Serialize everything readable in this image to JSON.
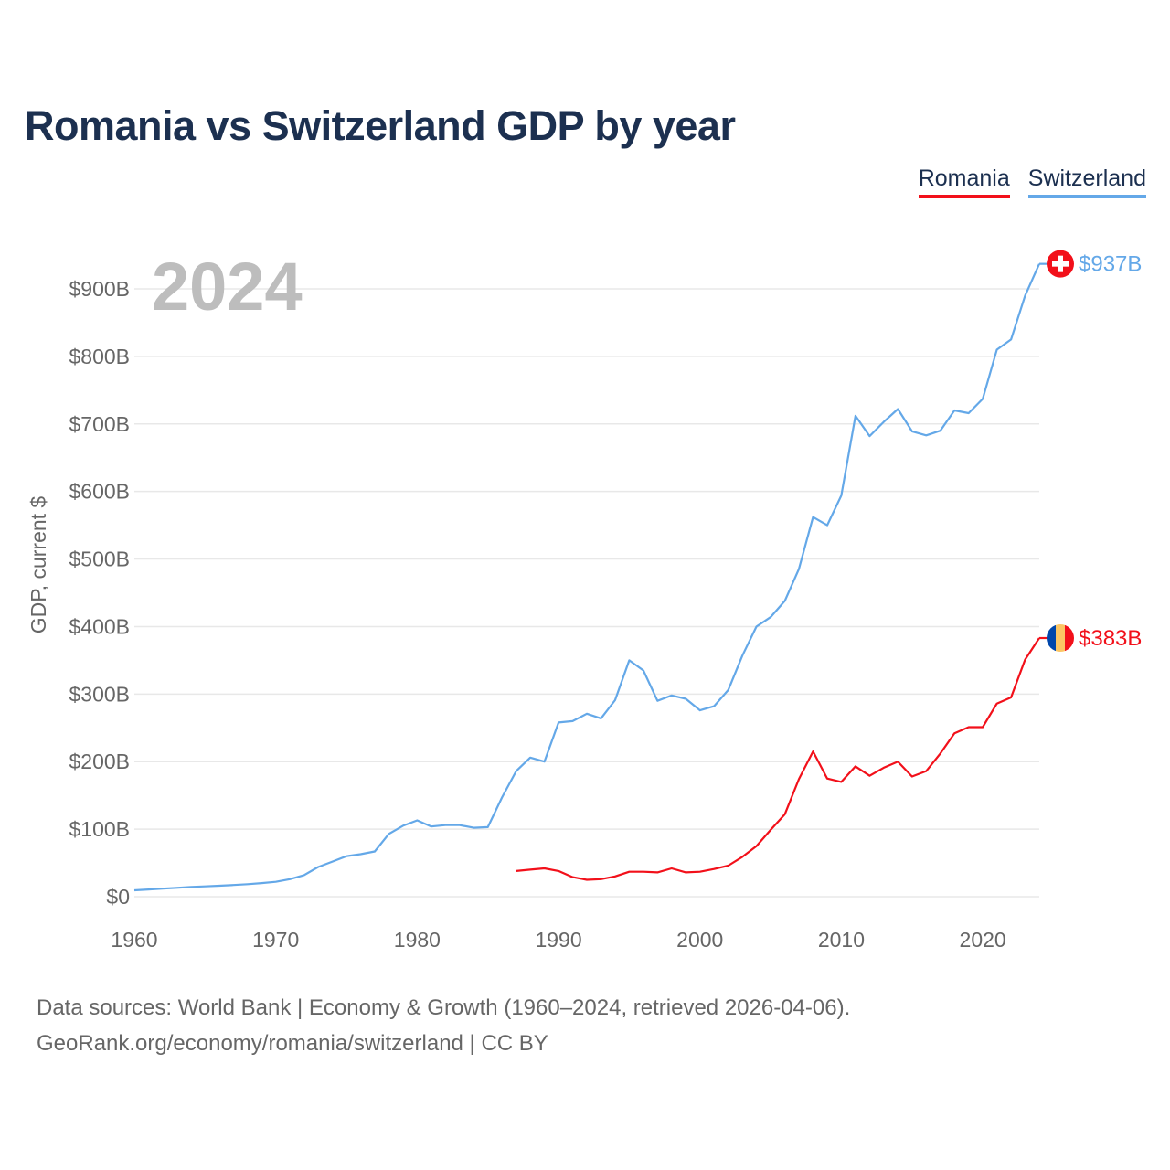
{
  "title": "Romania vs Switzerland GDP by year",
  "legend": [
    "Romania",
    "Switzerland"
  ],
  "footer": {
    "line1": "Data sources: World Bank | Economy & Growth (1960–2024, retrieved 2026-04-06).",
    "line2": "GeoRank.org/economy/romania/switzerland | CC BY"
  },
  "colors": {
    "Romania": "#f2101a",
    "Switzerland": "#64a8e8"
  },
  "chart_data": {
    "type": "line",
    "title": "Romania vs Switzerland GDP by year",
    "ylabel": "GDP, current $",
    "xlabel": "",
    "year_watermark": "2024",
    "xlim": [
      1960,
      2024
    ],
    "ylim": [
      0,
      900
    ],
    "x_ticks": [
      1960,
      1970,
      1980,
      1990,
      2000,
      2010,
      2020
    ],
    "y_ticks": [
      0,
      100,
      200,
      300,
      400,
      500,
      600,
      700,
      800,
      900
    ],
    "y_tick_labels": [
      "$0",
      "$100B",
      "$200B",
      "$300B",
      "$400B",
      "$500B",
      "$600B",
      "$700B",
      "$800B",
      "$900B"
    ],
    "units": "billions USD",
    "grid": true,
    "legend_position": "top-right",
    "series": [
      {
        "name": "Romania",
        "start_year": 1987,
        "end_label": "$383B",
        "values": [
          38,
          40,
          42,
          38,
          29,
          25,
          26,
          30,
          37,
          37,
          36,
          42,
          36,
          37,
          41,
          46,
          59,
          75,
          99,
          122,
          174,
          215,
          175,
          170,
          193,
          179,
          191,
          200,
          178,
          186,
          212,
          242,
          251,
          251,
          286,
          295,
          351,
          383
        ]
      },
      {
        "name": "Switzerland",
        "start_year": 1960,
        "end_label": "$937B",
        "values": [
          9.5,
          10.7,
          11.9,
          13.1,
          14.5,
          15.3,
          16.3,
          17.3,
          18.6,
          20.2,
          22,
          26,
          32,
          44,
          52,
          60,
          63,
          67,
          93,
          105,
          113,
          104,
          106,
          106,
          102,
          103,
          147,
          186,
          206,
          200,
          258,
          260,
          271,
          264,
          291,
          350,
          335,
          290,
          298,
          293,
          276,
          282,
          306,
          357,
          400,
          414,
          438,
          485,
          562,
          550,
          594,
          712,
          682,
          703,
          722,
          689,
          683,
          690,
          720,
          716,
          737,
          810,
          825,
          890,
          937
        ]
      }
    ]
  }
}
